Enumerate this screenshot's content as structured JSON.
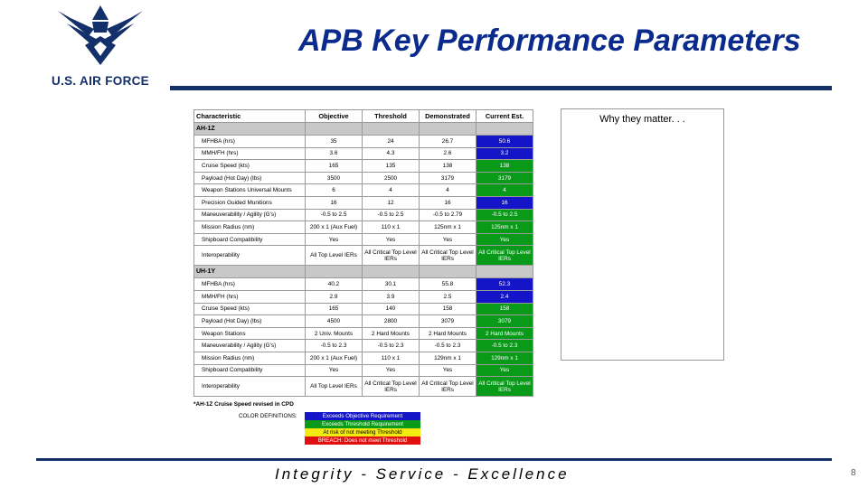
{
  "logo": {
    "icon": "air-force-wings-icon",
    "text": "U.S. AIR FORCE",
    "color": "#14306b"
  },
  "title": "APB Key Performance Parameters",
  "table": {
    "headers": [
      "Characteristic",
      "Objective",
      "Threshold",
      "Demonstrated",
      "Current Est."
    ],
    "sections": [
      {
        "name": "AH-1Z",
        "rows": [
          {
            "cells": [
              "MFHBA (hrs)",
              "35",
              "24",
              "26.7",
              "50.6"
            ],
            "status": "blue"
          },
          {
            "cells": [
              "MMH/FH (hrs)",
              "3.6",
              "4.3",
              "2.6",
              "3.2"
            ],
            "status": "blue"
          },
          {
            "cells": [
              "Cruise Speed (kts)",
              "165",
              "135",
              "138",
              "138"
            ],
            "status": "green"
          },
          {
            "cells": [
              "Payload (Hot Day) (lbs)",
              "3500",
              "2500",
              "3179",
              "3179"
            ],
            "status": "green"
          },
          {
            "cells": [
              "Weapon Stations Universal Mounts",
              "6",
              "4",
              "4",
              "4"
            ],
            "status": "green"
          },
          {
            "cells": [
              "Precision Guided Munitions",
              "16",
              "12",
              "16",
              "16"
            ],
            "status": "blue"
          },
          {
            "cells": [
              "Maneuverability / Agility (G's)",
              "-0.5 to 2.5",
              "-0.5 to 2.5",
              "-0.5 to 2.79",
              "-0.5 to 2.5"
            ],
            "status": "green"
          },
          {
            "cells": [
              "Mission Radius (nm)",
              "200 x 1 (Aux Fuel)",
              "110 x 1",
              "125nm x 1",
              "125nm x 1"
            ],
            "status": "green"
          },
          {
            "cells": [
              "Shipboard Compatibility",
              "Yes",
              "Yes",
              "Yes",
              "Yes"
            ],
            "status": "green"
          },
          {
            "cells": [
              "Interoperability",
              "All Top Level IERs",
              "All Critical Top Level IERs",
              "All Critical Top Level IERs",
              "All Critical Top Level IERs"
            ],
            "status": "green",
            "tall": true
          }
        ]
      },
      {
        "name": "UH-1Y",
        "rows": [
          {
            "cells": [
              "MFHBA (hrs)",
              "40.2",
              "30.1",
              "55.8",
              "52.3"
            ],
            "status": "blue"
          },
          {
            "cells": [
              "MMH/FH (hrs)",
              "2.9",
              "3.9",
              "2.5",
              "2.4"
            ],
            "status": "blue"
          },
          {
            "cells": [
              "Cruise Speed (kts)",
              "165",
              "140",
              "158",
              "158"
            ],
            "status": "green"
          },
          {
            "cells": [
              "Payload (Hot Day) (lbs)",
              "4500",
              "2800",
              "3079",
              "3079"
            ],
            "status": "green"
          },
          {
            "cells": [
              "Weapon Stations",
              "2 Univ. Mounts",
              "2 Hard Mounts",
              "2 Hard Mounts",
              "2 Hard Mounts"
            ],
            "status": "green"
          },
          {
            "cells": [
              "Maneuverability / Agility (G's)",
              "-0.5 to 2.3",
              "-0.5 to 2.3",
              "-0.5 to 2.3",
              "-0.5 to 2.3"
            ],
            "status": "green"
          },
          {
            "cells": [
              "Mission Radius (nm)",
              "200 x 1 (Aux Fuel)",
              "110 x 1",
              "129nm x 1",
              "129nm x 1"
            ],
            "status": "green"
          },
          {
            "cells": [
              "Shipboard Compatibility",
              "Yes",
              "Yes",
              "Yes",
              "Yes"
            ],
            "status": "green"
          },
          {
            "cells": [
              "Interoperability",
              "All Top Level IERs",
              "All Critical Top Level IERs",
              "All Critical Top Level IERs",
              "All Critical Top Level IERs"
            ],
            "status": "green",
            "tall": true
          }
        ]
      }
    ]
  },
  "footnote": "*AH-1Z Cruise Speed revised in CPD",
  "color_definitions": {
    "label": "COLOR DEFINITIONS:",
    "items": [
      {
        "text": "Exceeds Objective Requirement",
        "status": "blue"
      },
      {
        "text": "Exceeds Threshold Requirement",
        "status": "green"
      },
      {
        "text": "At risk of not meeting Threshold",
        "status": "yellow"
      },
      {
        "text": "BREACH: Does not meet Threshold",
        "status": "red"
      }
    ]
  },
  "colors": {
    "blue": "#1414c8",
    "green": "#0a9a1a",
    "yellow": "#f2ea10",
    "red": "#e01010",
    "brand": "#14306b",
    "title": "#0a2a8c"
  },
  "note": "Why they matter. . .",
  "tagline": "Integrity - Service - Excellence",
  "page_number": "8"
}
